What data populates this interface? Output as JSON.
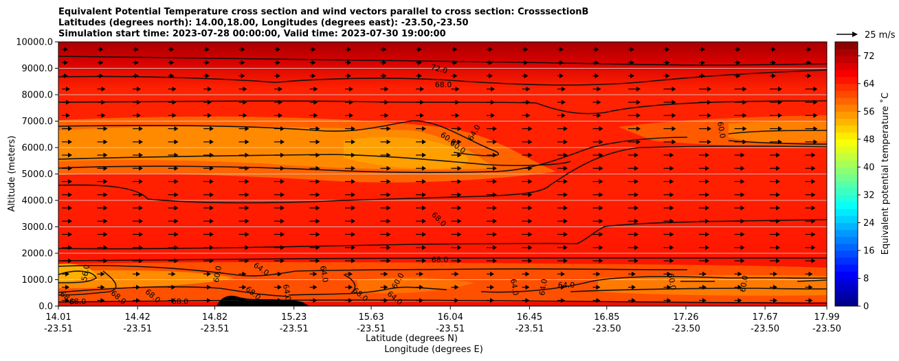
{
  "chart_data": {
    "type": "heatmap",
    "title_lines": [
      "Equivalent Potential Temperature cross section and wind vectors parallel to cross section: CrosssectionB",
      "Latitudes (degrees north): 14.00,18.00, Longitudes (degrees east): -23.50,-23.50",
      "Simulation start time: 2023-07-28 00:00:00, Valid time: 2023-07-30 19:00:00"
    ],
    "ylabel": "Altitude (meters)",
    "xlabel_lat": "Latitude (degrees N)",
    "xlabel_lon": "Longitude (degrees E)",
    "ylim": [
      0,
      10000
    ],
    "y_ticks": [
      "0.0",
      "1000.0",
      "2000.0",
      "3000.0",
      "4000.0",
      "5000.0",
      "6000.0",
      "7000.0",
      "8000.0",
      "9000.0",
      "10000.0"
    ],
    "x_ticks": [
      {
        "lat": "14.01",
        "lon": "-23.51"
      },
      {
        "lat": "14.42",
        "lon": "-23.51"
      },
      {
        "lat": "14.82",
        "lon": "-23.51"
      },
      {
        "lat": "15.23",
        "lon": "-23.51"
      },
      {
        "lat": "15.63",
        "lon": "-23.51"
      },
      {
        "lat": "16.04",
        "lon": "-23.51"
      },
      {
        "lat": "16.45",
        "lon": "-23.51"
      },
      {
        "lat": "16.85",
        "lon": "-23.50"
      },
      {
        "lat": "17.26",
        "lon": "-23.50"
      },
      {
        "lat": "17.67",
        "lon": "-23.50"
      },
      {
        "lat": "17.99",
        "lon": "-23.50"
      }
    ],
    "xlim_lat": [
      14.01,
      17.99
    ],
    "colorbar": {
      "label": "Equivalent potential temperature ˚C",
      "min": 0,
      "max": 76,
      "step": 2,
      "ticks": [
        "0",
        "8",
        "16",
        "24",
        "32",
        "40",
        "48",
        "56",
        "64",
        "72"
      ]
    },
    "wind_key": {
      "label": "25 m/s",
      "speed": 25
    },
    "grid": "horizontal lines at y ticks",
    "contour_labels": [
      "72.0",
      "68.0",
      "60.0",
      "60.0",
      "64.0",
      "60.0",
      "68.0",
      "68.0",
      "64.0",
      "56.0",
      "60.0",
      "64.0",
      "60.0",
      "64.0",
      "64.0",
      "64.0",
      "60.0",
      "60.0",
      "64.0",
      "68.0",
      "68.0",
      "68.0",
      "68.0",
      "68.0",
      "68.0",
      "68.0",
      "64.0"
    ],
    "colors": {
      "background_low": "#d00000",
      "mid": "#ff3a00",
      "warm": "#ff6a00",
      "core": "#ff9800",
      "top": "#a00000"
    }
  }
}
